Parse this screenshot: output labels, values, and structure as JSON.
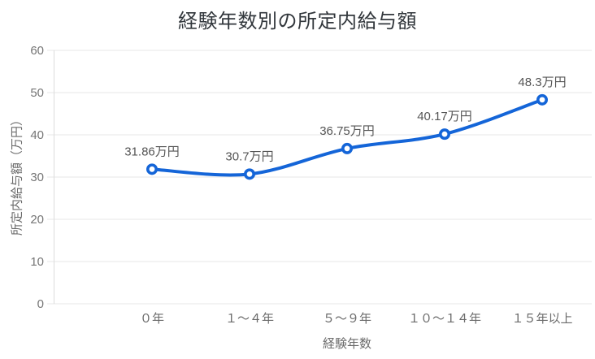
{
  "chart_data": {
    "type": "line",
    "title": "経験年数別の所定内給与額",
    "xlabel": "経験年数",
    "ylabel": "所定内給与額（万円）",
    "categories": [
      "０年",
      "１〜４年",
      "５〜９年",
      "１０〜１４年",
      "１５年以上"
    ],
    "values": [
      31.86,
      30.7,
      36.75,
      40.17,
      48.3
    ],
    "point_labels": [
      "31.86万円",
      "30.7万円",
      "36.75万円",
      "40.17万円",
      "48.3万円"
    ],
    "y_ticks": [
      0,
      10,
      20,
      30,
      40,
      50,
      60
    ],
    "ylim": [
      0,
      60
    ],
    "grid": "horizontal",
    "legend": "none",
    "colors": {
      "line": "#1465d8",
      "marker_fill": "#ffffff",
      "grid": "#e7e7e7",
      "axis_line": "#dcdcdc",
      "tick_label": "#757575",
      "category_label": "#6b6b6b",
      "data_label": "#555555",
      "title": "#32373c"
    }
  }
}
